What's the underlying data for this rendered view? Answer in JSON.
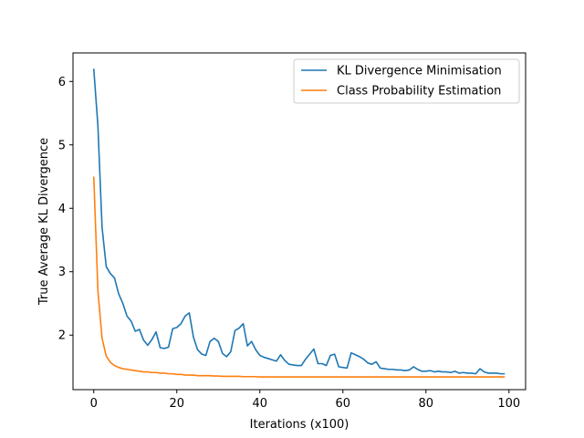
{
  "chart_data": {
    "type": "line",
    "xlabel": "Iterations (x100)",
    "ylabel": "True Average KL Divergence",
    "xlim": [
      -5,
      104
    ],
    "ylim": [
      1.14,
      6.45
    ],
    "xticks": [
      0,
      20,
      40,
      60,
      80,
      100
    ],
    "yticks": [
      2,
      3,
      4,
      5,
      6
    ],
    "grid": false,
    "legend_position": "top-right",
    "series": [
      {
        "name": "KL Divergence Minimisation",
        "color": "#1f77b4",
        "x": [
          0,
          1,
          2,
          3,
          4,
          5,
          6,
          7,
          8,
          9,
          10,
          11,
          12,
          13,
          14,
          15,
          16,
          17,
          18,
          19,
          20,
          21,
          22,
          23,
          24,
          25,
          26,
          27,
          28,
          29,
          30,
          31,
          32,
          33,
          34,
          35,
          36,
          37,
          38,
          39,
          40,
          41,
          42,
          43,
          44,
          45,
          46,
          47,
          48,
          49,
          50,
          51,
          52,
          53,
          54,
          55,
          56,
          57,
          58,
          59,
          60,
          61,
          62,
          63,
          64,
          65,
          66,
          67,
          68,
          69,
          70,
          71,
          72,
          73,
          74,
          75,
          76,
          77,
          78,
          79,
          80,
          81,
          82,
          83,
          84,
          85,
          86,
          87,
          88,
          89,
          90,
          91,
          92,
          93,
          94,
          95,
          96,
          97,
          98,
          99
        ],
        "values": [
          6.2,
          5.3,
          3.7,
          3.08,
          2.97,
          2.9,
          2.65,
          2.5,
          2.3,
          2.22,
          2.06,
          2.09,
          1.92,
          1.84,
          1.93,
          2.05,
          1.8,
          1.79,
          1.81,
          2.1,
          2.12,
          2.18,
          2.3,
          2.35,
          1.97,
          1.77,
          1.7,
          1.68,
          1.9,
          1.95,
          1.9,
          1.71,
          1.66,
          1.74,
          2.07,
          2.11,
          2.18,
          1.83,
          1.9,
          1.77,
          1.68,
          1.65,
          1.63,
          1.61,
          1.59,
          1.69,
          1.6,
          1.54,
          1.53,
          1.52,
          1.52,
          1.62,
          1.7,
          1.78,
          1.55,
          1.55,
          1.52,
          1.68,
          1.7,
          1.5,
          1.49,
          1.48,
          1.72,
          1.69,
          1.66,
          1.62,
          1.56,
          1.54,
          1.58,
          1.48,
          1.47,
          1.46,
          1.46,
          1.45,
          1.45,
          1.44,
          1.45,
          1.5,
          1.46,
          1.43,
          1.43,
          1.44,
          1.42,
          1.43,
          1.42,
          1.42,
          1.41,
          1.43,
          1.4,
          1.41,
          1.4,
          1.4,
          1.39,
          1.47,
          1.42,
          1.4,
          1.4,
          1.4,
          1.39,
          1.39
        ]
      },
      {
        "name": "Class Probability Estimation",
        "color": "#ff7f0e",
        "x": [
          0,
          1,
          2,
          3,
          4,
          5,
          6,
          7,
          8,
          9,
          10,
          11,
          12,
          13,
          14,
          15,
          16,
          17,
          18,
          19,
          20,
          21,
          22,
          23,
          24,
          25,
          26,
          27,
          28,
          29,
          30,
          31,
          32,
          33,
          34,
          35,
          36,
          37,
          38,
          39,
          40,
          41,
          42,
          43,
          44,
          45,
          46,
          47,
          48,
          49,
          50,
          51,
          52,
          53,
          54,
          55,
          56,
          57,
          58,
          59,
          60,
          61,
          62,
          63,
          64,
          65,
          66,
          67,
          68,
          69,
          70,
          71,
          72,
          73,
          74,
          75,
          76,
          77,
          78,
          79,
          80,
          81,
          82,
          83,
          84,
          85,
          86,
          87,
          88,
          89,
          90,
          91,
          92,
          93,
          94,
          95,
          96,
          97,
          98,
          99
        ],
        "values": [
          4.5,
          2.7,
          1.95,
          1.67,
          1.57,
          1.52,
          1.49,
          1.47,
          1.46,
          1.45,
          1.44,
          1.43,
          1.42,
          1.42,
          1.41,
          1.41,
          1.4,
          1.4,
          1.39,
          1.39,
          1.38,
          1.38,
          1.37,
          1.37,
          1.37,
          1.36,
          1.36,
          1.36,
          1.36,
          1.355,
          1.355,
          1.35,
          1.35,
          1.35,
          1.35,
          1.35,
          1.345,
          1.345,
          1.345,
          1.345,
          1.34,
          1.34,
          1.34,
          1.34,
          1.34,
          1.34,
          1.34,
          1.34,
          1.34,
          1.34,
          1.34,
          1.34,
          1.34,
          1.34,
          1.34,
          1.34,
          1.34,
          1.34,
          1.34,
          1.34,
          1.34,
          1.34,
          1.34,
          1.34,
          1.34,
          1.34,
          1.34,
          1.34,
          1.34,
          1.34,
          1.34,
          1.34,
          1.34,
          1.34,
          1.34,
          1.34,
          1.34,
          1.34,
          1.34,
          1.34,
          1.34,
          1.34,
          1.34,
          1.34,
          1.34,
          1.34,
          1.34,
          1.34,
          1.34,
          1.34,
          1.34,
          1.34,
          1.34,
          1.34,
          1.34,
          1.34,
          1.34,
          1.34,
          1.34,
          1.34
        ]
      }
    ]
  }
}
